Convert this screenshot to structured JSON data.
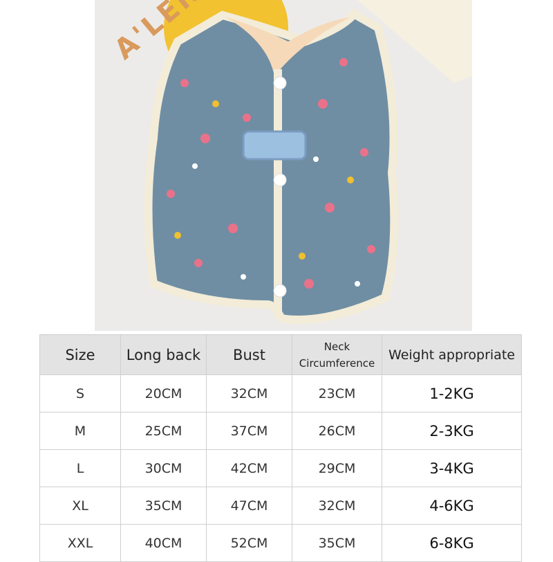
{
  "photo": {
    "background_text": "A'LEN",
    "colors": {
      "fabric": "#6f8ea3",
      "trim": "#f3ecd8",
      "lining": "#f6d9b8",
      "flower": "#e9728a",
      "yellow": "#f0c030"
    }
  },
  "table": {
    "headers": [
      "Size",
      "Long back",
      "Bust",
      "Neck Circumference",
      "Weight appropriate"
    ],
    "rows": [
      [
        "S",
        "20CM",
        "32CM",
        "23CM",
        "1-2KG"
      ],
      [
        "M",
        "25CM",
        "37CM",
        "26CM",
        "2-3KG"
      ],
      [
        "L",
        "30CM",
        "42CM",
        "29CM",
        "3-4KG"
      ],
      [
        "XL",
        "35CM",
        "47CM",
        "32CM",
        "4-6KG"
      ],
      [
        "XXL",
        "40CM",
        "52CM",
        "35CM",
        "6-8KG"
      ]
    ]
  }
}
